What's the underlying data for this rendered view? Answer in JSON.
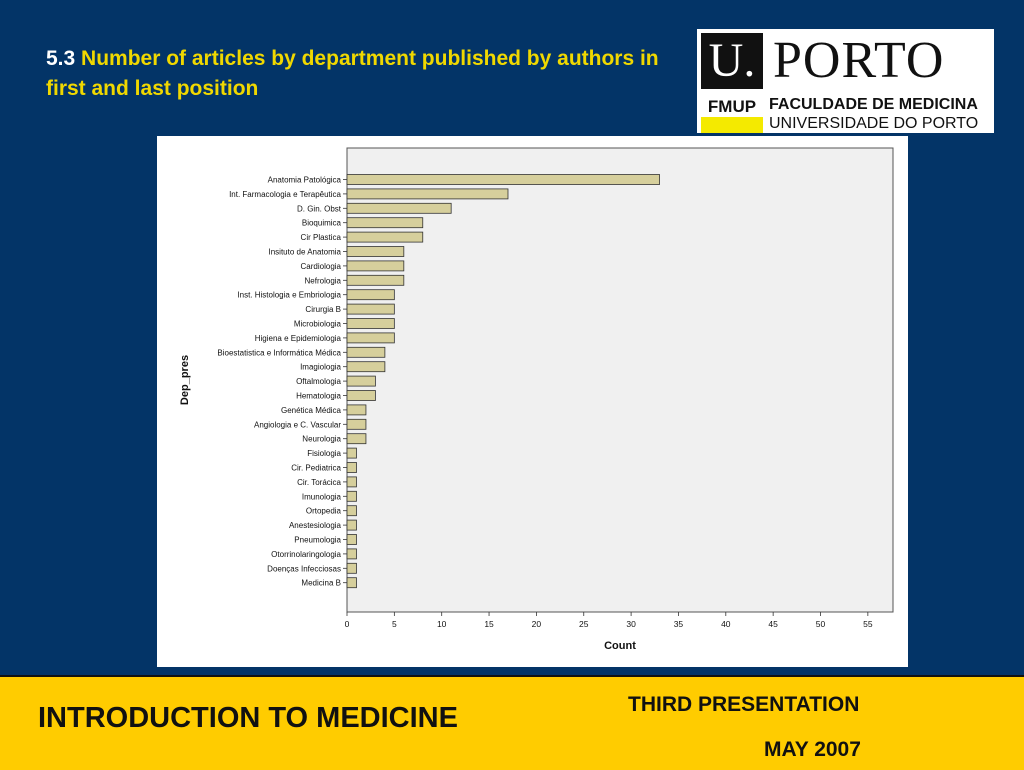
{
  "slide": {
    "number": "5.3",
    "title": "Number of articles by department published by authors in first and last position"
  },
  "logo": {
    "mark": "U.",
    "name": "PORTO",
    "unit": "FMUP",
    "faculty": "FACULDADE DE MEDICINA",
    "university": "UNIVERSIDADE DO PORTO"
  },
  "footer": {
    "course": "INTRODUCTION TO MEDICINE",
    "presentation": "THIRD PRESENTATION",
    "date": "MAY 2007"
  },
  "colors": {
    "background": "#033467",
    "title": "#f0d800",
    "footer": "#ffcc00",
    "bar_fill": "#d6cf9c",
    "plot_background": "#f0f0f0"
  },
  "chart_data": {
    "type": "bar",
    "orientation": "horizontal",
    "xlabel": "Count",
    "ylabel": "Dep_pres",
    "xlim": [
      0,
      55
    ],
    "xticks": [
      0,
      5,
      10,
      15,
      20,
      25,
      30,
      35,
      40,
      45,
      50,
      55
    ],
    "grid": false,
    "categories": [
      "Anatomia Patológica",
      "Int. Farmacologia e Terapêutica",
      "D. Gin. Obst",
      "Bioquimica",
      "Cir Plastica",
      "Insituto de Anatomia",
      "Cardiologia",
      "Nefrologia",
      "Inst. Histologia e Embriologia",
      "Cirurgia B",
      "Microbiologia",
      "Higiena e Epidemiologia",
      "Bioestatistica e Informática Médica",
      "Imagiologia",
      "Oftalmologia",
      "Hematologia",
      "Genética Médica",
      "Angiologia e C. Vascular",
      "Neurologia",
      "Fisiologia",
      "Cir. Pediatrica",
      "Cir. Torácica",
      "Imunologia",
      "Ortopedia",
      "Anestesiologia",
      "Pneumologia",
      "Otorrinolaringologia",
      "Doenças Infecciosas",
      "Medicina B"
    ],
    "values": [
      33,
      17,
      11,
      8,
      8,
      6,
      6,
      6,
      5,
      5,
      5,
      5,
      4,
      4,
      3,
      3,
      2,
      2,
      2,
      1,
      1,
      1,
      1,
      1,
      1,
      1,
      1,
      1,
      1
    ]
  }
}
